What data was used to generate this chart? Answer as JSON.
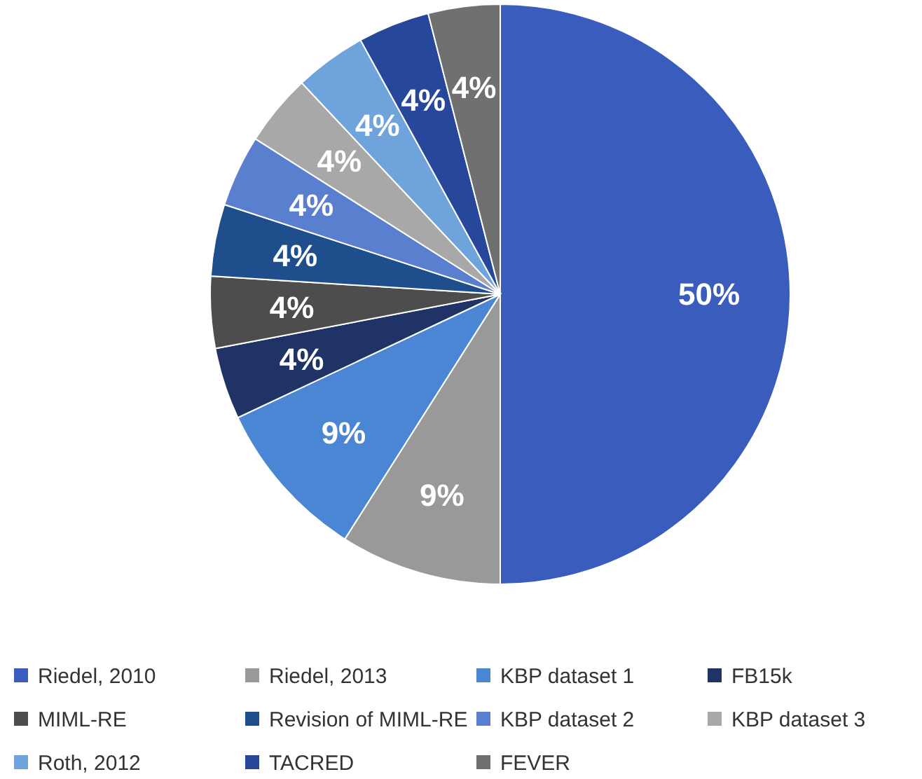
{
  "chart_data": {
    "type": "pie",
    "categories": [
      "Riedel, 2010",
      "Riedel, 2013",
      "KBP dataset 1",
      "FB15k",
      "MIML-RE",
      "Revision of MIML-RE",
      "KBP dataset 2",
      "KBP dataset 3",
      "Roth, 2012",
      "TACRED",
      "FEVER"
    ],
    "values": [
      50,
      9,
      9,
      4,
      4,
      4,
      4,
      4,
      4,
      4,
      4
    ],
    "value_labels": [
      "50%",
      "9%",
      "9%",
      "4%",
      "4%",
      "4%",
      "4%",
      "4%",
      "4%",
      "4%",
      "4%"
    ],
    "colors": [
      "#3a5dbd",
      "#999999",
      "#4a86d4",
      "#1f3366",
      "#4d4d4d",
      "#1f4e8c",
      "#5b7fcf",
      "#a8a8a8",
      "#6fa3dc",
      "#27479a",
      "#707070"
    ],
    "legend": "bottom"
  }
}
